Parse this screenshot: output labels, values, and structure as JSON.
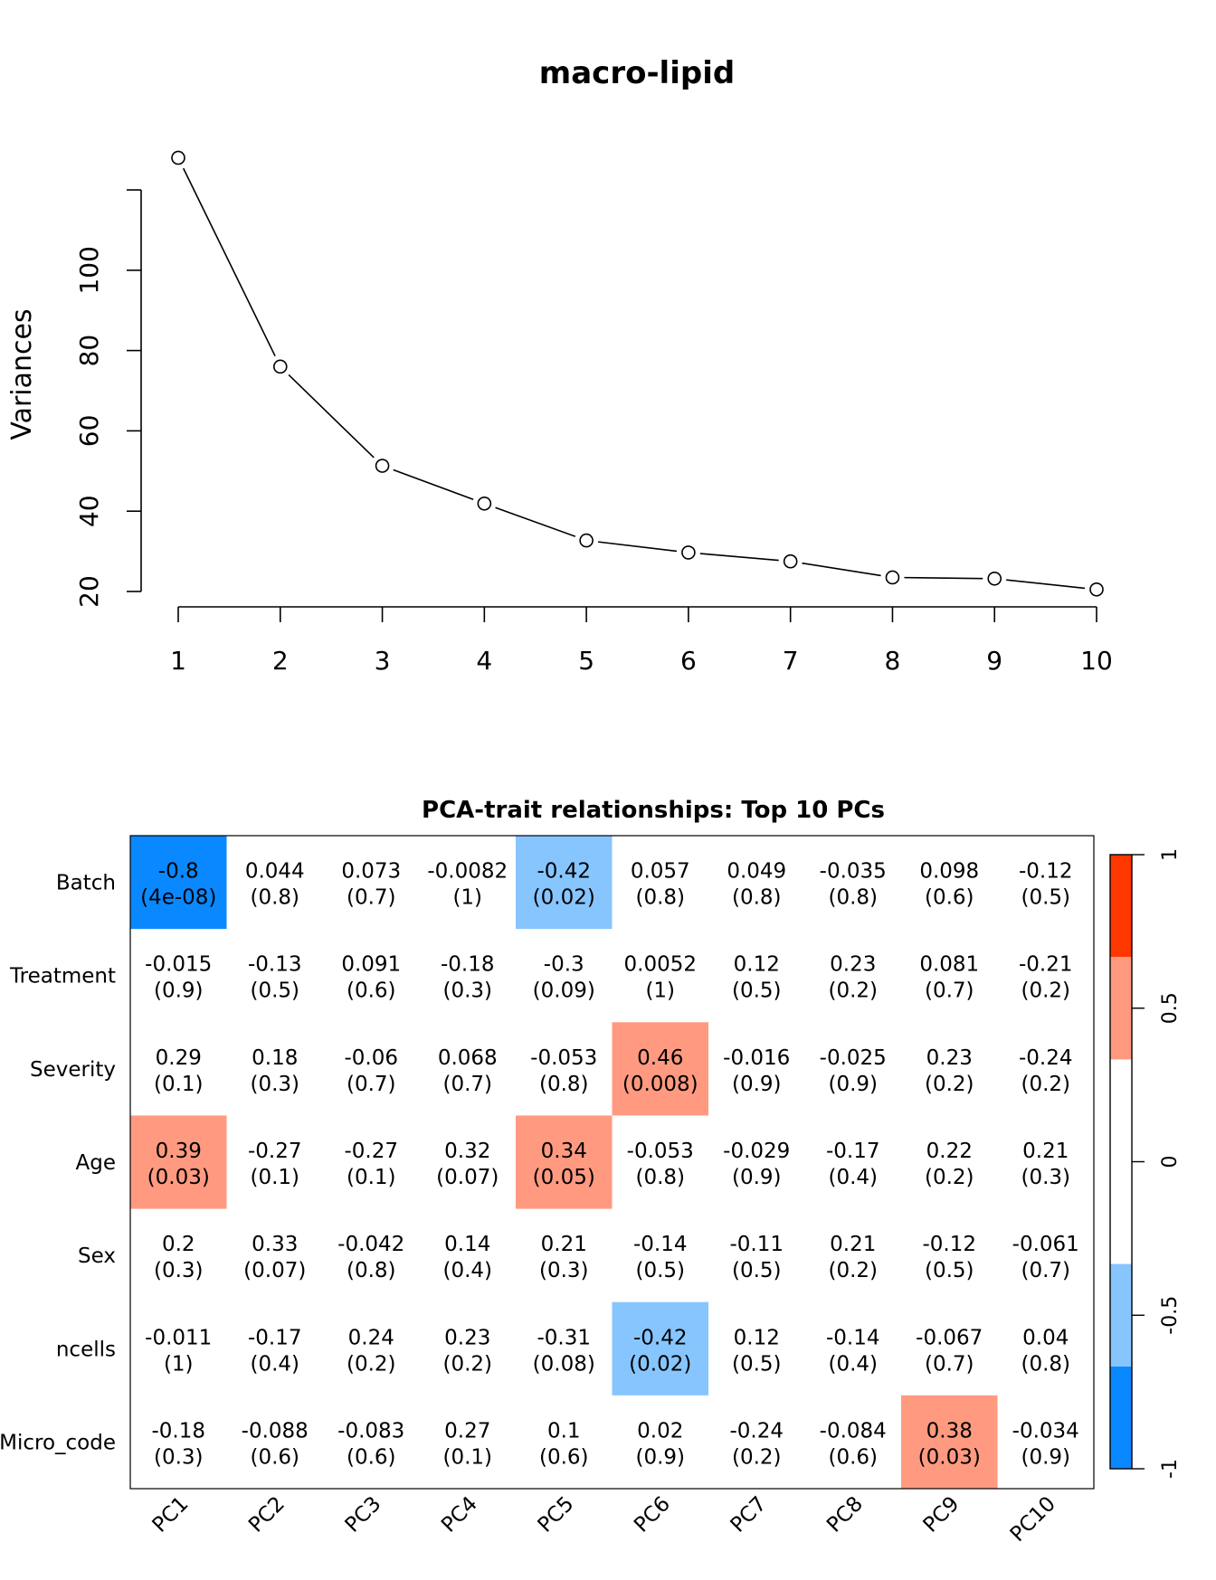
{
  "chart_data": [
    {
      "type": "line",
      "title": "macro-lipid",
      "xlabel": "",
      "ylabel": "Variances",
      "x": [
        1,
        2,
        3,
        4,
        5,
        6,
        7,
        8,
        9,
        10
      ],
      "y": [
        128.0,
        76.0,
        51.3,
        41.9,
        32.7,
        29.7,
        27.5,
        23.5,
        23.2,
        20.5
      ],
      "xticks": [
        "1",
        "2",
        "3",
        "4",
        "5",
        "6",
        "7",
        "8",
        "9",
        "10"
      ],
      "yticks": [
        20,
        40,
        60,
        80,
        100,
        120
      ],
      "ytick_labels": [
        "20",
        "40",
        "60",
        "80",
        "100",
        ""
      ],
      "ylim": [
        20,
        120
      ],
      "marker": "open-circle",
      "grid": false
    },
    {
      "type": "heatmap",
      "title": "PCA-trait relationships: Top 10 PCs",
      "columns": [
        "PC1",
        "PC2",
        "PC3",
        "PC4",
        "PC5",
        "PC6",
        "PC7",
        "PC8",
        "PC9",
        "PC10"
      ],
      "rows": [
        "Batch",
        "Treatment",
        "Severity",
        "Age",
        "Sex",
        "ncells",
        "Micro_code"
      ],
      "values": [
        [
          -0.8,
          0.044,
          0.073,
          -0.0082,
          -0.42,
          0.057,
          0.049,
          -0.035,
          0.098,
          -0.12
        ],
        [
          -0.015,
          -0.13,
          0.091,
          -0.18,
          -0.3,
          0.0052,
          0.12,
          0.23,
          0.081,
          -0.21
        ],
        [
          0.29,
          0.18,
          -0.06,
          0.068,
          -0.053,
          0.46,
          -0.016,
          -0.025,
          0.23,
          -0.24
        ],
        [
          0.39,
          -0.27,
          -0.27,
          0.32,
          0.34,
          -0.053,
          -0.029,
          -0.17,
          0.22,
          0.21
        ],
        [
          0.2,
          0.33,
          -0.042,
          0.14,
          0.21,
          -0.14,
          -0.11,
          0.21,
          -0.12,
          -0.061
        ],
        [
          -0.011,
          -0.17,
          0.24,
          0.23,
          -0.31,
          -0.42,
          0.12,
          -0.14,
          -0.067,
          0.04
        ],
        [
          -0.18,
          -0.088,
          -0.083,
          0.27,
          0.1,
          0.02,
          -0.24,
          -0.084,
          0.38,
          -0.034
        ]
      ],
      "pvalues": [
        [
          "4e-08",
          "0.8",
          "0.7",
          "1",
          "0.02",
          "0.8",
          "0.8",
          "0.8",
          "0.6",
          "0.5"
        ],
        [
          "0.9",
          "0.5",
          "0.6",
          "0.3",
          "0.09",
          "1",
          "0.5",
          "0.2",
          "0.7",
          "0.2"
        ],
        [
          "0.1",
          "0.3",
          "0.7",
          "0.7",
          "0.8",
          "0.008",
          "0.9",
          "0.9",
          "0.2",
          "0.2"
        ],
        [
          "0.03",
          "0.1",
          "0.1",
          "0.07",
          "0.05",
          "0.8",
          "0.9",
          "0.4",
          "0.2",
          "0.3"
        ],
        [
          "0.3",
          "0.07",
          "0.8",
          "0.4",
          "0.3",
          "0.5",
          "0.5",
          "0.2",
          "0.5",
          "0.7"
        ],
        [
          "1",
          "0.4",
          "0.2",
          "0.2",
          "0.08",
          "0.02",
          "0.5",
          "0.4",
          "0.7",
          "0.8"
        ],
        [
          "0.3",
          "0.6",
          "0.6",
          "0.1",
          "0.6",
          "0.9",
          "0.2",
          "0.6",
          "0.03",
          "0.9"
        ]
      ],
      "color_scale": {
        "range": [
          -1,
          1
        ],
        "breaks": [
          -1,
          -0.667,
          -0.333,
          0.333,
          0.667,
          1
        ],
        "colors": [
          "#0A88FF",
          "#87C5FF",
          "#FFFFFF",
          "#FF9A80",
          "#FF3800"
        ],
        "ticks": [
          -1,
          -0.5,
          0,
          0.5,
          1
        ],
        "tick_labels": [
          "-1",
          "-0.5",
          "0",
          "0.5",
          "1"
        ],
        "legend_position": "right"
      }
    }
  ]
}
